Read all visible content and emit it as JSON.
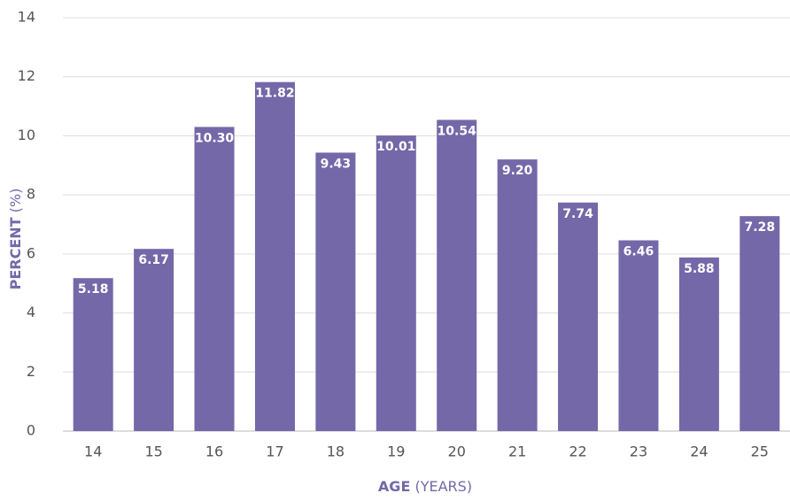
{
  "chart_data": {
    "type": "bar",
    "categories": [
      "14",
      "15",
      "16",
      "17",
      "18",
      "19",
      "20",
      "21",
      "22",
      "23",
      "24",
      "25"
    ],
    "values": [
      5.18,
      6.17,
      10.3,
      11.82,
      9.43,
      10.01,
      10.54,
      9.2,
      7.74,
      6.46,
      5.88,
      7.28
    ],
    "value_labels": [
      "5.18",
      "6.17",
      "10.30",
      "11.82",
      "9.43",
      "10.01",
      "10.54",
      "9.20",
      "7.74",
      "6.46",
      "5.88",
      "7.28"
    ],
    "color": "#7468a8",
    "ylim": [
      0,
      14
    ],
    "yticks": [
      0,
      2,
      4,
      6,
      8,
      10,
      12,
      14
    ],
    "grid": true,
    "xlabel": [
      "AGE",
      "(YEARS)"
    ],
    "ylabel": [
      "PERCENT",
      "(%)"
    ]
  }
}
